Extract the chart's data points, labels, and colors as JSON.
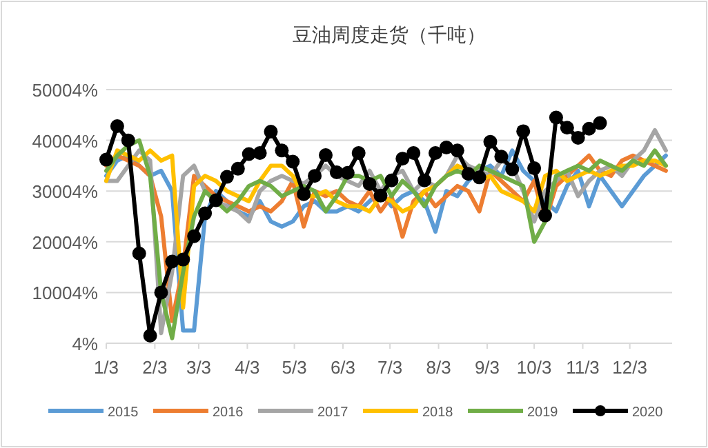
{
  "chart_data": {
    "type": "line",
    "title": "豆油周度走货（千吨）",
    "x": [
      "--01-03",
      "--01-10",
      "--01-17",
      "--01-24",
      "--01-31",
      "--02-07",
      "--02-14",
      "--02-21",
      "--02-28",
      "--03-07",
      "--03-14",
      "--03-21",
      "--03-28",
      "--04-04",
      "--04-11",
      "--04-18",
      "--04-25",
      "--05-02",
      "--05-09",
      "--05-16",
      "--05-23",
      "--05-30",
      "--06-06",
      "--06-13",
      "--06-20",
      "--06-27",
      "--07-04",
      "--07-11",
      "--07-18",
      "--07-25",
      "--08-01",
      "--08-08",
      "--08-15",
      "--08-22",
      "--08-29",
      "--09-05",
      "--09-12",
      "--09-19",
      "--09-26",
      "--10-03",
      "--10-10",
      "--10-17",
      "--10-24",
      "--10-31",
      "--11-07",
      "--11-14",
      "--11-21",
      "--11-28",
      "--12-05",
      "--12-12",
      "--12-19",
      "--12-26"
    ],
    "xlim": [
      "--01-03",
      "--12-30"
    ],
    "xticks": [
      {
        "value": "--01-03",
        "label": "1/3"
      },
      {
        "value": "--02-03",
        "label": "2/3"
      },
      {
        "value": "--03-03",
        "label": "3/3"
      },
      {
        "value": "--04-03",
        "label": "4/3"
      },
      {
        "value": "--05-03",
        "label": "5/3"
      },
      {
        "value": "--06-03",
        "label": "6/3"
      },
      {
        "value": "--07-03",
        "label": "7/3"
      },
      {
        "value": "--08-03",
        "label": "8/3"
      },
      {
        "value": "--09-03",
        "label": "9/3"
      },
      {
        "value": "--10-03",
        "label": "10/3"
      },
      {
        "value": "--11-03",
        "label": "11/3"
      },
      {
        "value": "--12-03",
        "label": "12/3"
      }
    ],
    "ylim": [
      4,
      50004
    ],
    "yticks": [
      {
        "value": 4,
        "label": "4%"
      },
      {
        "value": 10004,
        "label": "10004%"
      },
      {
        "value": 20004,
        "label": "20004%"
      },
      {
        "value": 30004,
        "label": "30004%"
      },
      {
        "value": 40004,
        "label": "40004%"
      },
      {
        "value": 50004,
        "label": "50004%"
      }
    ],
    "grid": "y",
    "legend": "bottom",
    "series": [
      {
        "name": "2015",
        "color": "#5b9bd5",
        "marker": "none",
        "values": [
          33000,
          36000,
          37000,
          35000,
          33000,
          34000,
          30000,
          2500,
          2500,
          25000,
          30000,
          28000,
          26000,
          25000,
          28000,
          24000,
          23000,
          24000,
          27000,
          28000,
          26000,
          26000,
          27000,
          26000,
          28000,
          30000,
          27000,
          29000,
          30000,
          28000,
          22000,
          30000,
          29000,
          32000,
          34000,
          35000,
          33000,
          38000,
          34000,
          32000,
          28000,
          26000,
          31000,
          34000,
          27000,
          33000,
          30000,
          27000,
          30000,
          33000,
          35000,
          37000
        ]
      },
      {
        "name": "2016",
        "color": "#ed7d31",
        "marker": "none",
        "values": [
          35000,
          37000,
          36000,
          35000,
          33000,
          25000,
          4400,
          15000,
          33000,
          31000,
          29000,
          28000,
          27000,
          26000,
          27000,
          26000,
          28000,
          32000,
          23000,
          30000,
          29000,
          30000,
          28000,
          27000,
          30000,
          26000,
          29000,
          21000,
          28000,
          30000,
          27000,
          29000,
          31000,
          30000,
          26000,
          34000,
          32000,
          30000,
          28000,
          32000,
          24000,
          31000,
          33000,
          35000,
          37000,
          34000,
          33000,
          36000,
          37000,
          36000,
          35000,
          34000
        ]
      },
      {
        "name": "2017",
        "color": "#a5a5a5",
        "marker": "none",
        "values": [
          32000,
          32000,
          35000,
          38000,
          36000,
          2000,
          14000,
          33000,
          35000,
          30000,
          28000,
          27000,
          26000,
          24000,
          30000,
          32000,
          33000,
          32000,
          31500,
          33000,
          35000,
          33000,
          32000,
          31000,
          34000,
          30000,
          33000,
          34000,
          30000,
          32000,
          31000,
          33000,
          37000,
          35000,
          34000,
          33000,
          36000,
          35000,
          30000,
          24000,
          30000,
          32000,
          34000,
          29000,
          32000,
          34000,
          35000,
          33000,
          36000,
          38000,
          42000,
          38000
        ]
      },
      {
        "name": "2018",
        "color": "#ffc000",
        "marker": "none",
        "values": [
          32000,
          38000,
          37000,
          36000,
          38000,
          36000,
          37000,
          7000,
          31000,
          33000,
          32000,
          30000,
          29000,
          28000,
          32000,
          35000,
          35000,
          33000,
          29000,
          29000,
          30000,
          28000,
          27000,
          27000,
          26000,
          29000,
          28000,
          26000,
          27000,
          30000,
          31000,
          33000,
          35000,
          34000,
          32000,
          33000,
          30000,
          29000,
          28000,
          26000,
          33000,
          34000,
          32000,
          33000,
          34000,
          33000,
          34000,
          35000,
          35000,
          36000,
          36000,
          35000
        ]
      },
      {
        "name": "2019",
        "color": "#70ad47",
        "marker": "none",
        "values": [
          34000,
          37000,
          39000,
          40000,
          33000,
          10000,
          1000,
          14000,
          25000,
          30000,
          28000,
          26000,
          28000,
          31000,
          32000,
          31000,
          29000,
          30000,
          31000,
          30000,
          26000,
          29000,
          33000,
          33000,
          32000,
          33000,
          29000,
          32000,
          30000,
          27000,
          31000,
          33000,
          34000,
          33000,
          35000,
          34000,
          33000,
          32000,
          31000,
          20000,
          24000,
          33000,
          34000,
          35000,
          34000,
          36000,
          35000,
          34000,
          36000,
          35000,
          38000,
          35000
        ]
      },
      {
        "name": "2020",
        "color": "#000000",
        "marker": "circle",
        "values": [
          36200,
          42800,
          40000,
          17700,
          1500,
          10000,
          16100,
          16500,
          21100,
          25600,
          28200,
          32800,
          34400,
          37300,
          37500,
          41700,
          38000,
          35800,
          29400,
          33000,
          37100,
          33700,
          33600,
          37500,
          31400,
          29100,
          32100,
          36400,
          37500,
          32100,
          37500,
          38600,
          38000,
          33400,
          32700,
          39700,
          36800,
          34300,
          41800,
          34500,
          25200,
          44500,
          42500,
          40500,
          42300,
          43400,
          null,
          null,
          null,
          null,
          null,
          null
        ]
      }
    ]
  }
}
